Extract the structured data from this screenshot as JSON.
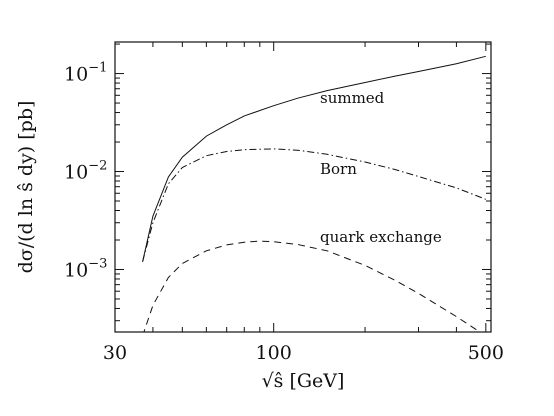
{
  "chart_data": {
    "type": "line",
    "xlabel": "√ŝ  [GeV]",
    "ylabel": "dσ/(d ln ŝ dy)  [pb]",
    "x_scale": "log",
    "y_scale": "log",
    "xlim": [
      30,
      520
    ],
    "ylim": [
      0.00023,
      0.21
    ],
    "x_ticks": [
      {
        "value": 30,
        "label": "30"
      },
      {
        "value": 100,
        "label": "100"
      },
      {
        "value": 500,
        "label": "500"
      }
    ],
    "y_ticks": [
      {
        "value": 0.1,
        "base": "10",
        "exp": "−1"
      },
      {
        "value": 0.01,
        "base": "10",
        "exp": "−2"
      },
      {
        "value": 0.001,
        "base": "10",
        "exp": "−3"
      }
    ],
    "series": [
      {
        "name": "summed",
        "style": "solid",
        "x": [
          37,
          40,
          45,
          50,
          60,
          70,
          80,
          100,
          120,
          150,
          200,
          250,
          300,
          400,
          500
        ],
        "y": [
          0.0012,
          0.0035,
          0.0088,
          0.014,
          0.023,
          0.03,
          0.037,
          0.047,
          0.056,
          0.067,
          0.081,
          0.094,
          0.105,
          0.126,
          0.15
        ]
      },
      {
        "name": "Born",
        "style": "dashdot",
        "x": [
          37,
          40,
          45,
          50,
          60,
          70,
          80,
          100,
          120,
          150,
          200,
          250,
          300,
          400,
          500
        ],
        "y": [
          0.0012,
          0.003,
          0.0075,
          0.011,
          0.0145,
          0.016,
          0.0167,
          0.017,
          0.0165,
          0.015,
          0.0125,
          0.0105,
          0.0089,
          0.0068,
          0.0052
        ]
      },
      {
        "name": "quark exchange",
        "style": "dashed",
        "x": [
          37,
          40,
          45,
          50,
          60,
          70,
          80,
          90,
          100,
          120,
          150,
          200,
          250,
          300,
          400,
          500
        ],
        "y": [
          0.00021,
          0.00043,
          0.00083,
          0.00115,
          0.00155,
          0.00178,
          0.0019,
          0.00195,
          0.00192,
          0.0018,
          0.00155,
          0.0011,
          0.00078,
          0.00057,
          0.00033,
          0.00021
        ]
      }
    ],
    "annotations": [
      {
        "text": "summed",
        "series": "summed"
      },
      {
        "text": "Born",
        "series": "Born"
      },
      {
        "text": "quark exchange",
        "series": "quark exchange"
      }
    ],
    "legend": "none",
    "grid": false
  }
}
